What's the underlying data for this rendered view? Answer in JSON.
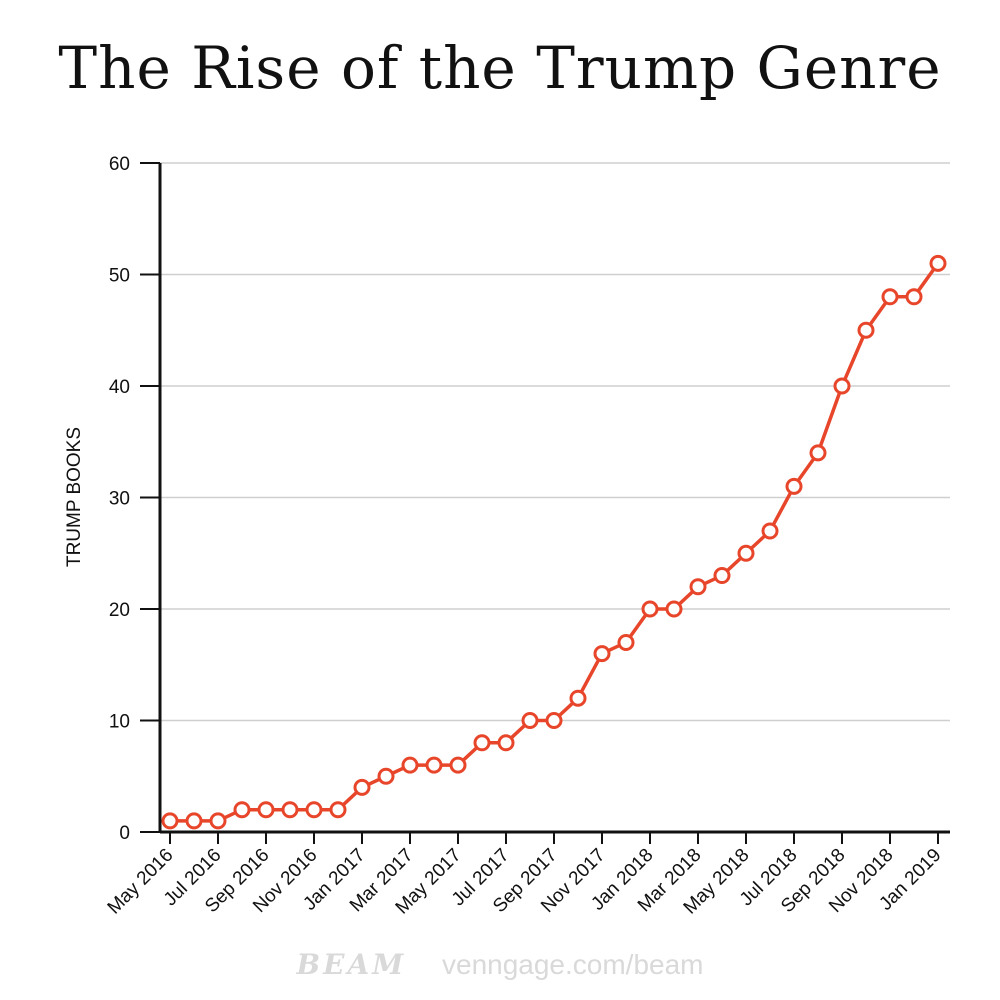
{
  "chart_data": {
    "type": "line",
    "title": "The Rise of the Trump Genre",
    "ylabel": "TRUMP BOOKS",
    "xlabel": "",
    "ylim": [
      0,
      60
    ],
    "yticks": [
      0,
      10,
      20,
      30,
      40,
      50,
      60
    ],
    "x": [
      "May 2016",
      "Jun 2016",
      "Jul 2016",
      "Aug 2016",
      "Sep 2016",
      "Oct 2016",
      "Nov 2016",
      "Dec 2016",
      "Jan 2017",
      "Feb 2017",
      "Mar 2017",
      "Apr 2017",
      "May 2017",
      "Jun 2017",
      "Jul 2017",
      "Aug 2017",
      "Sep 2017",
      "Oct 2017",
      "Nov 2017",
      "Dec 2017",
      "Jan 2018",
      "Feb 2018",
      "Mar 2018",
      "Apr 2018",
      "May 2018",
      "Jun 2018",
      "Jul 2018",
      "Aug 2018",
      "Sep 2018",
      "Oct 2018",
      "Nov 2018",
      "Dec 2018",
      "Jan 2019"
    ],
    "xtick_labels": [
      "May 2016",
      "Jul 2016",
      "Sep 2016",
      "Nov 2016",
      "Jan 2017",
      "Mar 2017",
      "May 2017",
      "Jul 2017",
      "Sep 2017",
      "Nov 2017",
      "Jan 2018",
      "Mar 2018",
      "May 2018",
      "Jul 2018",
      "Sep 2018",
      "Nov 2018",
      "Jan 2019"
    ],
    "series": [
      {
        "values": [
          1,
          1,
          1,
          2,
          2,
          2,
          2,
          2,
          4,
          5,
          6,
          6,
          6,
          8,
          8,
          10,
          10,
          12,
          16,
          17,
          20,
          20,
          22,
          23,
          25,
          27,
          31,
          34,
          40,
          45,
          48,
          48,
          51
        ]
      }
    ],
    "grid": true,
    "line_color": "#e8462a"
  },
  "watermark": {
    "brand": "BEAM",
    "url": "venngage.com/beam"
  }
}
